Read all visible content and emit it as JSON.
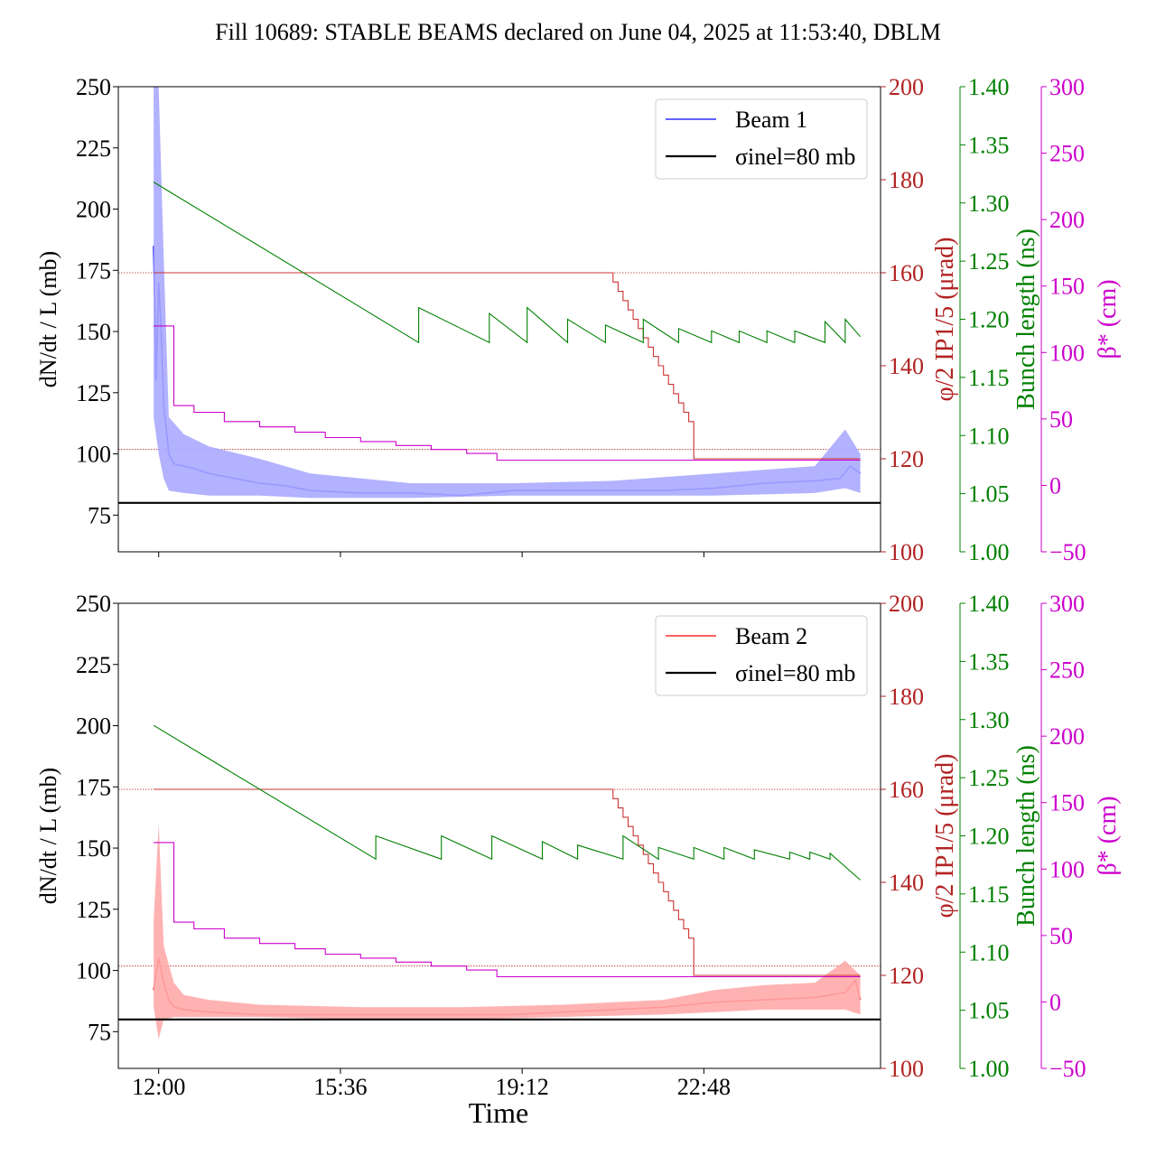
{
  "figure": {
    "title": "Fill 10689: STABLE BEAMS declared on June 04, 2025 at 11:53:40, DBLM",
    "xlabel": "Time",
    "x_tick_labels": [
      "12:00",
      "15:36",
      "19:12",
      "22:48"
    ],
    "x_tick_values_h": [
      12.0,
      15.6,
      19.2,
      22.8
    ]
  },
  "axes": {
    "left": {
      "ylabel": "dN/dt / L (mb)",
      "range": [
        60,
        250
      ],
      "ticks": [
        "75",
        "100",
        "125",
        "150",
        "175",
        "200",
        "225",
        "250"
      ],
      "color": "#000000"
    },
    "angle": {
      "ylabel": "φ/2 IP1/5 (μrad)",
      "range": [
        100,
        200
      ],
      "ticks": [
        "100",
        "120",
        "140",
        "160",
        "180",
        "200"
      ],
      "color": "#b22222"
    },
    "bunch": {
      "ylabel": "Bunch length (ns)",
      "range": [
        1.0,
        1.4
      ],
      "ticks": [
        "1.00",
        "1.05",
        "1.10",
        "1.15",
        "1.20",
        "1.25",
        "1.30",
        "1.35",
        "1.40"
      ],
      "color": "#008000"
    },
    "beta": {
      "ylabel": "β* (cm)",
      "range": [
        -50,
        300
      ],
      "ticks": [
        "−50",
        "0",
        "50",
        "100",
        "150",
        "200",
        "250",
        "300"
      ],
      "color": "#cc00cc"
    }
  },
  "legend_sigma": "σinel=80 mb",
  "chart_data": [
    {
      "type": "line",
      "panel": "top",
      "legend": [
        "Beam 1",
        "σinel=80 mb"
      ],
      "legend_position": "top-right",
      "x_unit": "hours of day",
      "xlim": [
        11.2,
        26.3
      ],
      "series": [
        {
          "name": "Beam 1",
          "axis": "left",
          "color": "#0000ff",
          "x": [
            11.9,
            11.95,
            12.0,
            12.05,
            12.1,
            12.15,
            12.2,
            12.3,
            12.5,
            12.7,
            13.0,
            13.5,
            14.0,
            14.5,
            15.0,
            16.0,
            17.0,
            18.0,
            19.0,
            20.0,
            21.0,
            22.0,
            23.0,
            24.0,
            25.0,
            25.5,
            25.7,
            25.9
          ],
          "y": [
            185,
            130,
            170,
            150,
            120,
            110,
            100,
            96,
            95,
            94,
            92,
            90,
            88,
            87,
            85,
            84,
            84,
            83,
            85,
            85,
            85,
            85,
            86,
            88,
            89,
            90,
            95,
            92
          ]
        },
        {
          "name": "Beam 1 band",
          "axis": "left",
          "color": "#aaaaff",
          "x": [
            11.9,
            12.0,
            12.1,
            12.2,
            12.5,
            13.0,
            14.0,
            15.0,
            17.0,
            19.0,
            21.0,
            23.0,
            25.0,
            25.6,
            25.9
          ],
          "lower": [
            115,
            100,
            90,
            85,
            84,
            83,
            83,
            82,
            82,
            83,
            83,
            83,
            84,
            86,
            84
          ],
          "upper": [
            250,
            250,
            180,
            115,
            108,
            103,
            98,
            92,
            88,
            88,
            89,
            92,
            95,
            110,
            100
          ]
        },
        {
          "name": "φ/2 IP1/5",
          "axis": "angle",
          "color": "#cc3333",
          "step": true,
          "x": [
            11.9,
            20.9,
            21.0,
            21.1,
            21.2,
            21.3,
            21.4,
            21.5,
            21.6,
            21.7,
            21.8,
            21.9,
            22.0,
            22.1,
            22.2,
            22.3,
            22.4,
            22.5,
            22.6,
            25.9
          ],
          "y": [
            160,
            160,
            158,
            156,
            154,
            152,
            150,
            148,
            146,
            144,
            142,
            140,
            138,
            136,
            134,
            132,
            130,
            128,
            120,
            120
          ]
        },
        {
          "name": "bunch length",
          "axis": "bunch",
          "color": "#008000",
          "x": [
            11.9,
            17.15,
            17.15,
            18.55,
            18.55,
            19.3,
            19.3,
            20.1,
            20.1,
            20.85,
            20.85,
            21.6,
            21.6,
            22.3,
            22.3,
            22.95,
            22.95,
            23.5,
            23.5,
            24.05,
            24.05,
            24.6,
            24.6,
            25.2,
            25.2,
            25.6,
            25.6,
            25.9
          ],
          "y": [
            1.318,
            1.18,
            1.21,
            1.18,
            1.205,
            1.18,
            1.21,
            1.18,
            1.2,
            1.18,
            1.195,
            1.18,
            1.2,
            1.18,
            1.192,
            1.18,
            1.19,
            1.18,
            1.19,
            1.18,
            1.19,
            1.18,
            1.19,
            1.18,
            1.198,
            1.18,
            1.2,
            1.185
          ]
        },
        {
          "name": "β*",
          "axis": "beta",
          "color": "#cc00cc",
          "step": true,
          "x": [
            11.9,
            12.3,
            12.3,
            12.7,
            12.7,
            13.3,
            13.3,
            14.0,
            14.0,
            14.7,
            14.7,
            15.3,
            15.3,
            16.0,
            16.0,
            16.7,
            16.7,
            17.4,
            17.4,
            18.1,
            18.1,
            18.7,
            18.7,
            25.9
          ],
          "y": [
            120,
            120,
            60,
            60,
            55,
            55,
            48,
            48,
            44,
            44,
            40,
            40,
            36,
            36,
            33,
            33,
            30,
            30,
            27,
            27,
            24,
            24,
            19,
            19
          ]
        },
        {
          "name": "σinel=80 mb",
          "axis": "left",
          "color": "#000000",
          "x": [
            11.2,
            26.3
          ],
          "y": [
            80,
            80
          ]
        }
      ],
      "hlines": [
        {
          "axis": "angle",
          "y": 160
        },
        {
          "axis": "angle",
          "y": 122
        }
      ]
    },
    {
      "type": "line",
      "panel": "bottom",
      "legend": [
        "Beam 2",
        "σinel=80 mb"
      ],
      "legend_position": "top-right",
      "x_unit": "hours of day",
      "xlim": [
        11.2,
        26.3
      ],
      "series": [
        {
          "name": "Beam 2",
          "axis": "left",
          "color": "#ff0000",
          "x": [
            11.9,
            12.0,
            12.1,
            12.2,
            12.3,
            12.5,
            13.0,
            14.0,
            15.0,
            16.0,
            17.0,
            18.0,
            19.0,
            20.0,
            21.0,
            22.0,
            23.0,
            24.0,
            25.0,
            25.6,
            25.8,
            25.9
          ],
          "y": [
            92,
            105,
            95,
            88,
            85,
            84,
            83,
            82,
            82,
            82,
            82,
            82,
            82,
            83,
            84,
            85,
            87,
            88,
            89,
            91,
            96,
            88
          ]
        },
        {
          "name": "Beam 2 band",
          "axis": "left",
          "color": "#ffaaaa",
          "x": [
            11.9,
            12.0,
            12.1,
            12.3,
            12.5,
            13.0,
            14.0,
            16.0,
            18.0,
            20.0,
            22.0,
            23.0,
            24.0,
            25.0,
            25.6,
            25.9
          ],
          "lower": [
            85,
            72,
            80,
            81,
            81,
            81,
            81,
            80,
            80,
            81,
            82,
            83,
            84,
            84,
            84,
            82
          ],
          "upper": [
            120,
            160,
            110,
            95,
            90,
            88,
            86,
            85,
            85,
            86,
            88,
            92,
            94,
            95,
            104,
            98
          ]
        },
        {
          "name": "φ/2 IP1/5",
          "axis": "angle",
          "color": "#cc3333",
          "step": true,
          "x": [
            11.9,
            20.9,
            21.0,
            21.1,
            21.2,
            21.3,
            21.4,
            21.5,
            21.6,
            21.7,
            21.8,
            21.9,
            22.0,
            22.1,
            22.2,
            22.3,
            22.4,
            22.5,
            22.6,
            25.9
          ],
          "y": [
            160,
            160,
            158,
            156,
            154,
            152,
            150,
            148,
            146,
            144,
            142,
            140,
            138,
            136,
            134,
            132,
            130,
            128,
            120,
            120
          ]
        },
        {
          "name": "bunch length",
          "axis": "bunch",
          "color": "#008000",
          "x": [
            11.9,
            16.3,
            16.3,
            17.6,
            17.6,
            18.6,
            18.6,
            19.6,
            19.6,
            20.3,
            20.3,
            21.2,
            21.2,
            21.9,
            21.9,
            22.6,
            22.6,
            23.2,
            23.2,
            23.8,
            23.8,
            24.5,
            24.5,
            24.9,
            24.9,
            25.3,
            25.3,
            25.9
          ],
          "y": [
            1.295,
            1.18,
            1.2,
            1.18,
            1.2,
            1.18,
            1.2,
            1.18,
            1.195,
            1.18,
            1.192,
            1.18,
            1.2,
            1.18,
            1.19,
            1.18,
            1.19,
            1.18,
            1.19,
            1.18,
            1.188,
            1.18,
            1.186,
            1.18,
            1.186,
            1.18,
            1.185,
            1.162
          ]
        },
        {
          "name": "β*",
          "axis": "beta",
          "color": "#cc00cc",
          "step": true,
          "x": [
            11.9,
            12.3,
            12.3,
            12.7,
            12.7,
            13.3,
            13.3,
            14.0,
            14.0,
            14.7,
            14.7,
            15.3,
            15.3,
            16.0,
            16.0,
            16.7,
            16.7,
            17.4,
            17.4,
            18.1,
            18.1,
            18.7,
            18.7,
            25.9
          ],
          "y": [
            120,
            120,
            60,
            60,
            55,
            55,
            48,
            48,
            44,
            44,
            40,
            40,
            36,
            36,
            33,
            33,
            30,
            30,
            27,
            27,
            24,
            24,
            19,
            19
          ]
        },
        {
          "name": "σinel=80 mb",
          "axis": "left",
          "color": "#000000",
          "x": [
            11.2,
            26.3
          ],
          "y": [
            80,
            80
          ]
        }
      ],
      "hlines": [
        {
          "axis": "angle",
          "y": 160
        },
        {
          "axis": "angle",
          "y": 122
        }
      ]
    }
  ]
}
